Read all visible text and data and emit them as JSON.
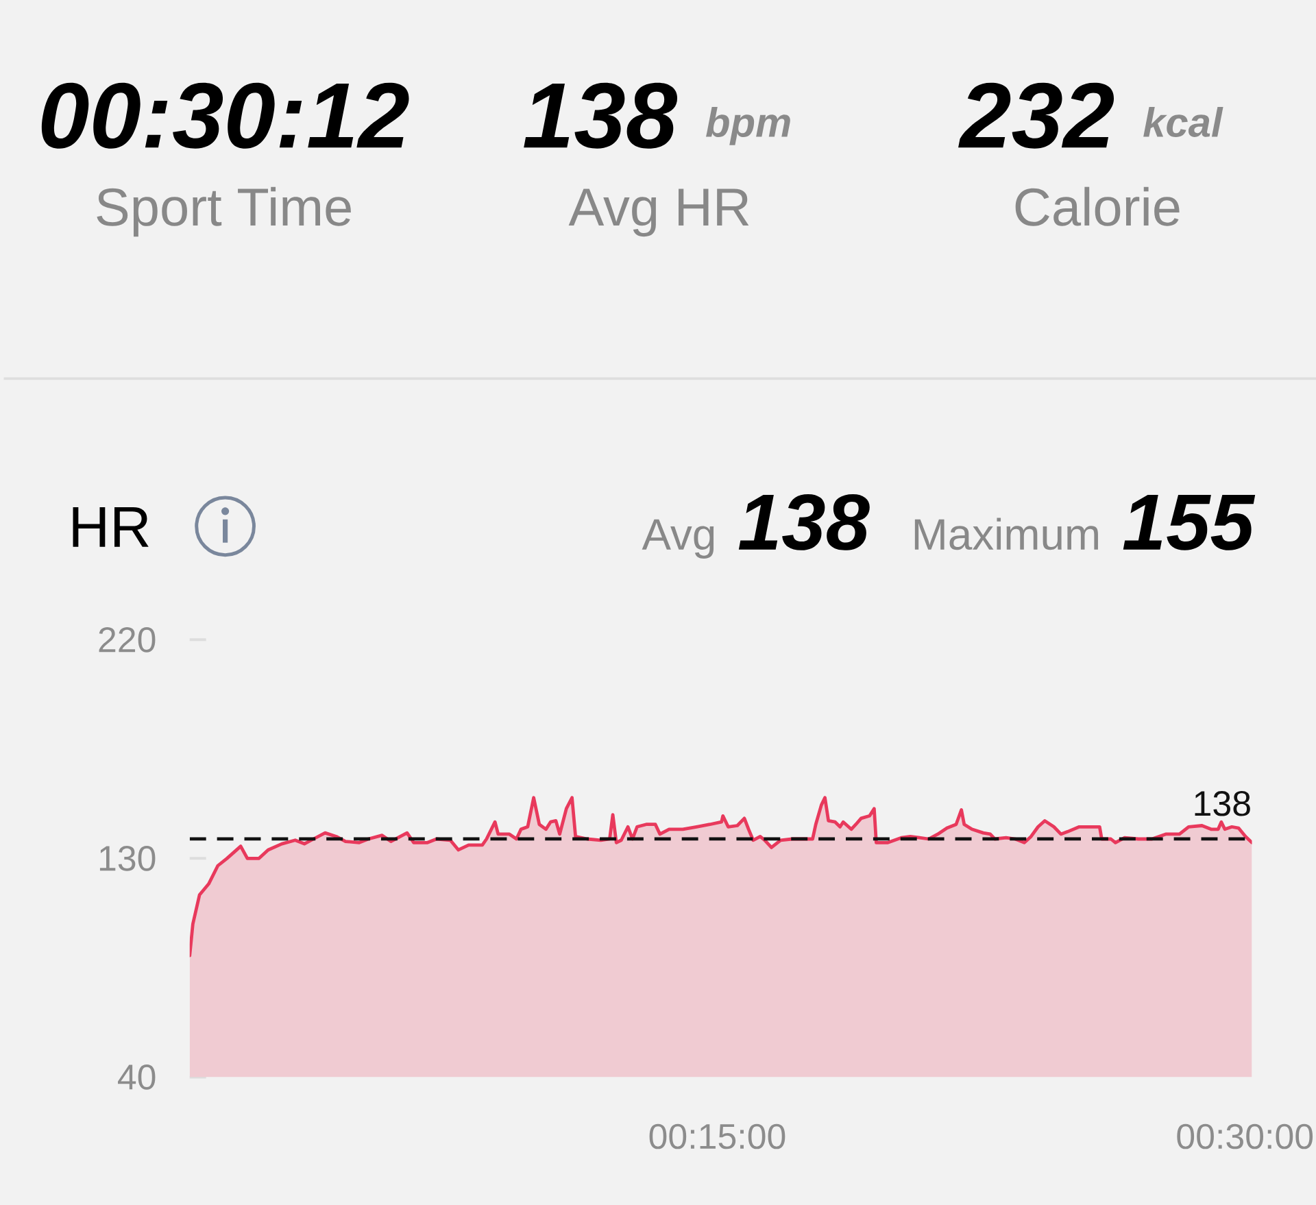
{
  "chart_data": [
    {
      "type": "other",
      "annotations": [
        "00:30:12",
        "Sport Time",
        "138",
        "bpm",
        "Avg HR",
        "232",
        "kcal",
        "Calorie"
      ]
    },
    {
      "type": "area",
      "title": "HR",
      "annotations": [
        "Avg",
        "138",
        "Maximum",
        "155"
      ],
      "color": "#e8395c",
      "marker": "none",
      "line_style": "solid",
      "x": [
        0,
        0.09,
        0.28,
        0.54,
        0.8,
        1.06,
        1.45,
        1.64,
        1.97,
        2.23,
        2.62,
        3.0,
        3.26,
        3.52,
        3.85,
        4.17,
        4.43,
        4.82,
        5.08,
        5.47,
        5.72,
        6.18,
        6.37,
        6.76,
        7.02,
        7.41,
        7.64,
        7.93,
        8.32,
        8.44,
        8.68,
        8.77,
        9.09,
        9.29,
        9.42,
        9.61,
        9.78,
        9.94,
        10.13,
        10.26,
        10.41,
        10.52,
        10.71,
        10.87,
        10.97,
        11.3,
        11.69,
        11.94,
        12.03,
        12.13,
        12.27,
        12.46,
        12.59,
        12.72,
        12.98,
        13.24,
        13.37,
        13.63,
        14.02,
        14.41,
        14.79,
        15.12,
        15.16,
        15.31,
        15.57,
        15.77,
        15.89,
        16.02,
        16.22,
        16.35,
        16.54,
        16.8,
        17.13,
        17.51,
        17.71,
        17.8,
        17.96,
        18.06,
        18.16,
        18.35,
        18.49,
        18.58,
        18.81,
        18.94,
        19.09,
        19.33,
        19.46,
        19.52,
        19.85,
        20.23,
        20.49,
        20.75,
        21.01,
        21.27,
        21.53,
        21.79,
        21.94,
        22.02,
        22.24,
        22.56,
        22.76,
        22.89,
        23.21,
        23.47,
        23.73,
        23.92,
        24.12,
        24.31,
        24.57,
        24.77,
        24.96,
        25.29,
        25.68,
        25.87,
        25.93,
        26.19,
        26.32,
        26.58,
        26.97,
        27.36,
        27.75,
        28.14,
        28.4,
        28.78,
        29.04,
        29.24,
        29.33,
        29.43,
        29.63,
        29.82,
        30.02,
        30.2
      ],
      "values": [
        90,
        103,
        115,
        119.5,
        127,
        130,
        135,
        130,
        130,
        133.5,
        136,
        137.5,
        136,
        138,
        140.5,
        139,
        137,
        136.5,
        138,
        139.5,
        137,
        140.5,
        136.5,
        136.5,
        138,
        137.5,
        133.5,
        135.5,
        135.5,
        138,
        145,
        140,
        140,
        138,
        142,
        143,
        155,
        144,
        142,
        145,
        145.5,
        140,
        150.5,
        155,
        139,
        138,
        137.5,
        138,
        148,
        136.5,
        137.5,
        143,
        138,
        143,
        144,
        144,
        140,
        142,
        142,
        143,
        144,
        145,
        147.5,
        143,
        143.5,
        146.5,
        142,
        137.5,
        139,
        137.5,
        134.5,
        137.5,
        138,
        138,
        138,
        144,
        152,
        155,
        145.5,
        145,
        143,
        145,
        142,
        144,
        146.5,
        147.5,
        150.5,
        136.5,
        136.5,
        138.5,
        139,
        138.5,
        138,
        140,
        142.5,
        144,
        150,
        144,
        142,
        140.5,
        140,
        138,
        138.5,
        138,
        136.5,
        139,
        143,
        145.5,
        143,
        140,
        141,
        143,
        143,
        143,
        138,
        138,
        136.5,
        138.5,
        138,
        138,
        140,
        140,
        143,
        143.5,
        142,
        142,
        145,
        142,
        143,
        142.5,
        139,
        136.5
      ],
      "xlim": [
        0,
        30.2
      ],
      "xticks": [
        {
          "value": 15,
          "label": "00:15:00"
        },
        {
          "value": 30,
          "label": "00:30:00"
        }
      ],
      "ylim": [
        40,
        220
      ],
      "yticks": [
        40,
        130,
        220
      ],
      "ref_lines": [
        {
          "axis": "y",
          "value": 138,
          "label": "138",
          "color": "#111111",
          "line_style": "dashed"
        }
      ]
    }
  ]
}
